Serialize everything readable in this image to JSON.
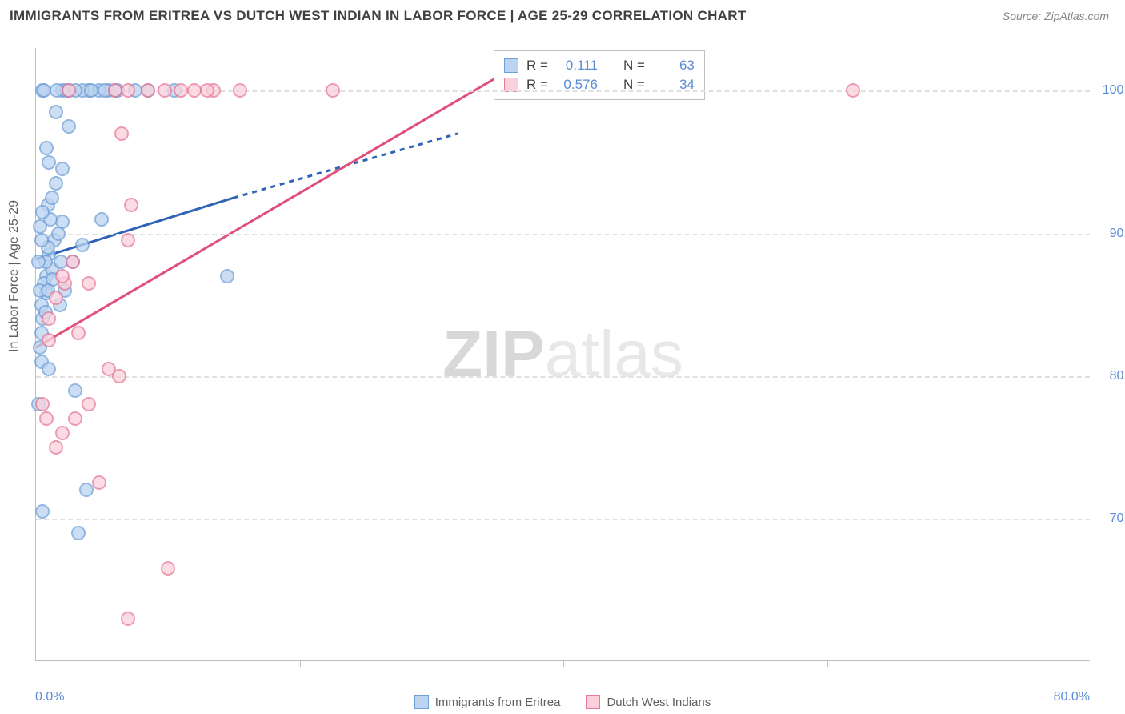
{
  "title": "IMMIGRANTS FROM ERITREA VS DUTCH WEST INDIAN IN LABOR FORCE | AGE 25-29 CORRELATION CHART",
  "source": "Source: ZipAtlas.com",
  "y_axis_label": "In Labor Force | Age 25-29",
  "watermark": {
    "bold": "ZIP",
    "rest": "atlas"
  },
  "plot": {
    "x_min": 0.0,
    "x_max": 80.0,
    "y_min": 60.0,
    "y_max": 103.0,
    "x_tick_labels": {
      "left": "0.0%",
      "right": "80.0%"
    },
    "x_ticks": [
      0,
      20,
      40,
      60,
      80
    ],
    "y_grid": [
      70.0,
      80.0,
      90.0,
      100.0
    ],
    "y_tick_labels": [
      "70.0%",
      "80.0%",
      "90.0%",
      "100.0%"
    ],
    "background_color": "#ffffff",
    "grid_color": "#e0e0e0",
    "axis_color": "#bfbfbf",
    "tick_label_color": "#5a8cd6"
  },
  "series": [
    {
      "name": "Immigrants from Eritrea",
      "fill": "#bcd4f0",
      "stroke": "#6f9fd8",
      "line_color": "#2f63b8",
      "r_value": "0.111",
      "n_value": "63",
      "trend": {
        "x1": 0,
        "y1": 88.2,
        "x2": 15,
        "y2": 92.5,
        "solid_until_x": 15,
        "dash_to_x": 32,
        "dash_to_y": 97.0
      },
      "points": [
        [
          0.5,
          100.0
        ],
        [
          1.5,
          98.5
        ],
        [
          2.0,
          100.0
        ],
        [
          2.3,
          100.0
        ],
        [
          0.8,
          87.0
        ],
        [
          1.0,
          88.5
        ],
        [
          1.2,
          87.5
        ],
        [
          0.6,
          86.5
        ],
        [
          0.4,
          85.0
        ],
        [
          0.8,
          85.8
        ],
        [
          0.3,
          86.0
        ],
        [
          0.5,
          84.0
        ],
        [
          0.4,
          83.0
        ],
        [
          3.5,
          89.2
        ],
        [
          2.0,
          90.8
        ],
        [
          2.8,
          88.0
        ],
        [
          4.0,
          100.0
        ],
        [
          5.5,
          100.0
        ],
        [
          6.2,
          100.0
        ],
        [
          7.5,
          100.0
        ],
        [
          0.9,
          92.0
        ],
        [
          1.2,
          92.5
        ],
        [
          1.5,
          93.5
        ],
        [
          2.0,
          94.5
        ],
        [
          2.5,
          100.0
        ],
        [
          0.3,
          82.0
        ],
        [
          0.4,
          81.0
        ],
        [
          1.0,
          80.5
        ],
        [
          3.0,
          79.0
        ],
        [
          3.5,
          100.0
        ],
        [
          1.6,
          100.0
        ],
        [
          4.8,
          100.0
        ],
        [
          1.1,
          91.0
        ],
        [
          1.4,
          89.5
        ],
        [
          1.7,
          90.0
        ],
        [
          0.9,
          89.0
        ],
        [
          0.7,
          88.0
        ],
        [
          5.0,
          91.0
        ],
        [
          14.5,
          87.0
        ],
        [
          0.2,
          88.0
        ],
        [
          0.3,
          90.5
        ],
        [
          0.5,
          91.5
        ],
        [
          0.8,
          96.0
        ],
        [
          1.0,
          95.0
        ],
        [
          0.6,
          100.0
        ],
        [
          8.5,
          100.0
        ],
        [
          3.8,
          72.0
        ],
        [
          0.2,
          78.0
        ],
        [
          4.2,
          100.0
        ],
        [
          3.0,
          100.0
        ],
        [
          2.5,
          97.5
        ],
        [
          3.2,
          69.0
        ],
        [
          0.5,
          70.5
        ],
        [
          5.2,
          100.0
        ],
        [
          2.2,
          86.0
        ],
        [
          1.8,
          85.0
        ],
        [
          1.3,
          86.8
        ],
        [
          0.9,
          86.0
        ],
        [
          0.7,
          84.5
        ],
        [
          1.9,
          88.0
        ],
        [
          0.4,
          89.5
        ],
        [
          6.0,
          100.0
        ],
        [
          10.5,
          100.0
        ]
      ]
    },
    {
      "name": "Dutch West Indians",
      "fill": "#fad1db",
      "stroke": "#e77a9a",
      "line_color": "#e04e7a",
      "r_value": "0.576",
      "n_value": "34",
      "trend": {
        "x1": 0,
        "y1": 82.0,
        "x2": 36,
        "y2": 101.5,
        "solid_until_x": 36
      },
      "points": [
        [
          2.0,
          76.0
        ],
        [
          3.0,
          77.0
        ],
        [
          1.5,
          75.0
        ],
        [
          4.0,
          78.0
        ],
        [
          6.5,
          97.0
        ],
        [
          7.2,
          92.0
        ],
        [
          7.0,
          100.0
        ],
        [
          8.5,
          100.0
        ],
        [
          11.0,
          100.0
        ],
        [
          12.0,
          100.0
        ],
        [
          13.5,
          100.0
        ],
        [
          22.5,
          100.0
        ],
        [
          13.0,
          100.0
        ],
        [
          9.8,
          100.0
        ],
        [
          7.0,
          89.5
        ],
        [
          5.5,
          80.5
        ],
        [
          6.3,
          80.0
        ],
        [
          10.0,
          66.5
        ],
        [
          1.5,
          85.5
        ],
        [
          1.0,
          84.0
        ],
        [
          2.2,
          86.5
        ],
        [
          62.0,
          100.0
        ],
        [
          15.5,
          100.0
        ],
        [
          2.5,
          100.0
        ],
        [
          0.5,
          78.0
        ],
        [
          6.0,
          100.0
        ],
        [
          3.2,
          83.0
        ],
        [
          2.0,
          87.0
        ],
        [
          2.8,
          88.0
        ],
        [
          4.0,
          86.5
        ],
        [
          7.0,
          63.0
        ],
        [
          4.8,
          72.5
        ],
        [
          0.8,
          77.0
        ],
        [
          1.0,
          82.5
        ]
      ]
    }
  ],
  "bottom_legend": [
    {
      "label": "Immigrants from Eritrea",
      "fill": "#bcd4f0",
      "stroke": "#6f9fd8"
    },
    {
      "label": "Dutch West Indians",
      "fill": "#fad1db",
      "stroke": "#e77a9a"
    }
  ],
  "stats_labels": {
    "r": "R =",
    "n": "N ="
  }
}
